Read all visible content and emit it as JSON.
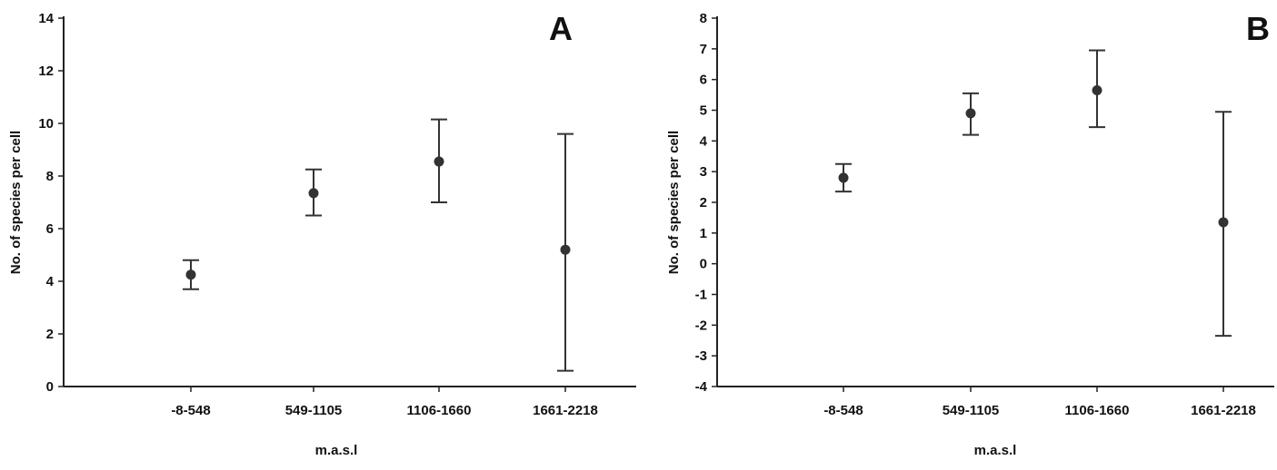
{
  "chart_data": [
    {
      "type": "scatter",
      "panel_label": "A",
      "ylabel": "No. of species per cell",
      "xlabel": "m.a.s.l",
      "categories": [
        "-8-548",
        "549-1105",
        "1106-1660",
        "1661-2218"
      ],
      "ylim": [
        0,
        14
      ],
      "yticks": [
        0,
        2,
        4,
        6,
        8,
        10,
        12,
        14
      ],
      "points": [
        {
          "x": "-8-548",
          "y": 4.25,
          "lower": 3.7,
          "upper": 4.8
        },
        {
          "x": "549-1105",
          "y": 7.35,
          "lower": 6.5,
          "upper": 8.25
        },
        {
          "x": "1106-1660",
          "y": 8.55,
          "lower": 7.0,
          "upper": 10.15
        },
        {
          "x": "1661-2218",
          "y": 5.2,
          "lower": 0.6,
          "upper": 9.6
        }
      ],
      "grid": false,
      "colors": {
        "marker": "#333333",
        "axis": "#222222"
      }
    },
    {
      "type": "scatter",
      "panel_label": "B",
      "ylabel": "No. of species per cell",
      "xlabel": "m.a.s.l",
      "categories": [
        "-8-548",
        "549-1105",
        "1106-1660",
        "1661-2218"
      ],
      "ylim": [
        -4,
        8
      ],
      "yticks": [
        -4,
        -3,
        -2,
        -1,
        0,
        1,
        2,
        3,
        4,
        5,
        6,
        7,
        8
      ],
      "points": [
        {
          "x": "-8-548",
          "y": 2.8,
          "lower": 2.35,
          "upper": 3.25
        },
        {
          "x": "549-1105",
          "y": 4.9,
          "lower": 4.2,
          "upper": 5.55
        },
        {
          "x": "1106-1660",
          "y": 5.65,
          "lower": 4.45,
          "upper": 6.95
        },
        {
          "x": "1661-2218",
          "y": 1.35,
          "lower": -2.35,
          "upper": 4.95
        }
      ],
      "grid": false,
      "colors": {
        "marker": "#333333",
        "axis": "#222222"
      }
    }
  ]
}
